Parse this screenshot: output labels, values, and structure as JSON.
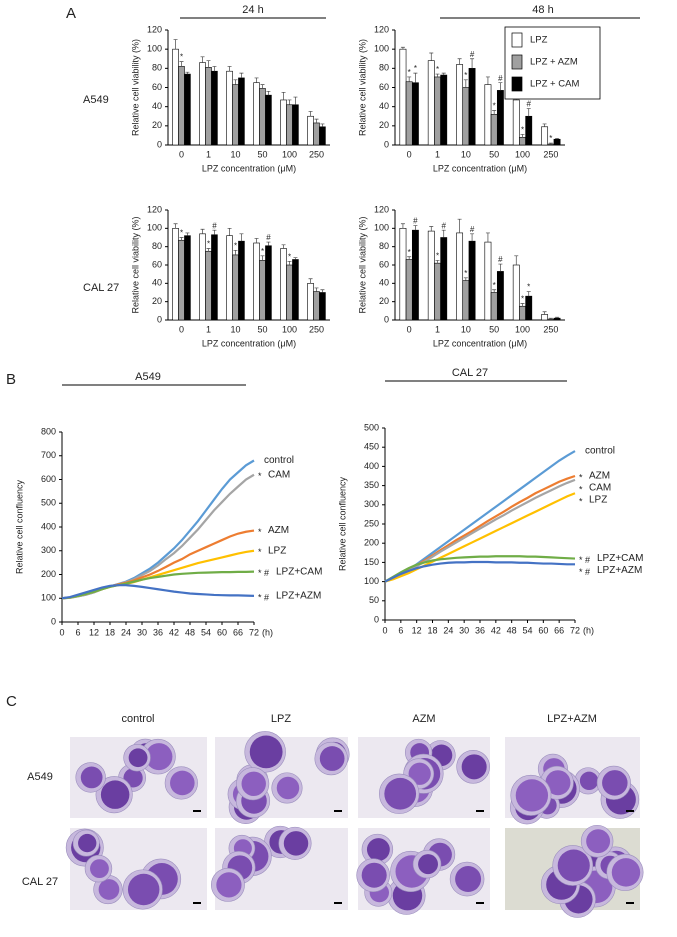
{
  "panel_a": {
    "label": "A",
    "columns": [
      "24 h",
      "48 h"
    ],
    "rows": [
      "A549",
      "CAL 27"
    ]
  },
  "panel_b": {
    "label": "B"
  },
  "panel_c": {
    "label": "C",
    "columns": [
      "control",
      "LPZ",
      "AZM",
      "LPZ+AZM"
    ],
    "rows": [
      "A549",
      "CAL 27"
    ]
  },
  "chart_data": [
    {
      "type": "bar",
      "x_label": "LPZ concentration (μM)",
      "y_label": "Relative cell viability (%)",
      "categories": [
        "0",
        "1",
        "10",
        "50",
        "100",
        "250"
      ],
      "ylim": [
        0,
        120
      ],
      "yticks": [
        0,
        20,
        40,
        60,
        80,
        100,
        120
      ],
      "legend": false,
      "series": [
        {
          "color": "#ffffff",
          "values": [
            100,
            86,
            77,
            65,
            47,
            30
          ],
          "errors": [
            10,
            6,
            5,
            5,
            8,
            5
          ],
          "marks": [
            null,
            null,
            null,
            null,
            null,
            null
          ]
        },
        {
          "color": "#a0a0a0",
          "values": [
            82,
            81,
            63,
            59,
            42,
            23
          ],
          "errors": [
            5,
            7,
            5,
            4,
            5,
            4
          ],
          "marks": [
            "*",
            null,
            null,
            null,
            null,
            null
          ]
        },
        {
          "color": "#000000",
          "values": [
            74,
            77,
            70,
            52,
            42,
            19
          ],
          "errors": [
            2,
            5,
            5,
            4,
            8,
            3
          ],
          "marks": [
            null,
            null,
            null,
            null,
            null,
            null
          ]
        }
      ]
    },
    {
      "type": "bar",
      "x_label": "LPZ concentration (μM)",
      "y_label": "Relative cell viability (%)",
      "categories": [
        "0",
        "1",
        "10",
        "50",
        "100",
        "250"
      ],
      "ylim": [
        0,
        120
      ],
      "yticks": [
        0,
        20,
        40,
        60,
        80,
        100,
        120
      ],
      "legend": true,
      "series": [
        {
          "name": "LPZ",
          "color": "#ffffff",
          "values": [
            100,
            88,
            84,
            63,
            47,
            19
          ],
          "errors": [
            2,
            8,
            6,
            8,
            2,
            3
          ],
          "marks": [
            null,
            null,
            null,
            null,
            null,
            null
          ]
        },
        {
          "name": "LPZ + AZM",
          "color": "#a0a0a0",
          "values": [
            66,
            71,
            60,
            32,
            8,
            1
          ],
          "errors": [
            5,
            3,
            8,
            4,
            3,
            1
          ],
          "marks": [
            "*",
            "*",
            "*",
            "*",
            "*",
            "*"
          ]
        },
        {
          "name": "LPZ + CAM",
          "color": "#000000",
          "values": [
            65,
            73,
            80,
            57,
            30,
            6
          ],
          "errors": [
            10,
            2,
            10,
            8,
            8,
            1
          ],
          "marks": [
            "*",
            null,
            "#",
            "#",
            "#",
            null
          ]
        }
      ]
    },
    {
      "type": "bar",
      "x_label": "LPZ concentration (μM)",
      "y_label": "Relative cell viability (%)",
      "categories": [
        "0",
        "1",
        "10",
        "50",
        "100",
        "250"
      ],
      "ylim": [
        0,
        120
      ],
      "yticks": [
        0,
        20,
        40,
        60,
        80,
        100,
        120
      ],
      "legend": false,
      "series": [
        {
          "color": "#ffffff",
          "values": [
            100,
            94,
            92,
            84,
            78,
            40
          ],
          "errors": [
            5,
            5,
            8,
            5,
            4,
            5
          ],
          "marks": [
            null,
            null,
            null,
            null,
            null,
            null
          ]
        },
        {
          "color": "#a0a0a0",
          "values": [
            87,
            75,
            71,
            65,
            60,
            31
          ],
          "errors": [
            3,
            3,
            5,
            5,
            4,
            4
          ],
          "marks": [
            "*",
            "*",
            "*",
            "*",
            "*",
            null
          ]
        },
        {
          "color": "#000000",
          "values": [
            92,
            93,
            86,
            81,
            66,
            30
          ],
          "errors": [
            3,
            5,
            8,
            4,
            2,
            3
          ],
          "marks": [
            null,
            "#",
            null,
            "#",
            null,
            null
          ]
        }
      ]
    },
    {
      "type": "bar",
      "x_label": "LPZ concentration (μM)",
      "y_label": "Relative cell viability (%)",
      "categories": [
        "0",
        "1",
        "10",
        "50",
        "100",
        "250"
      ],
      "ylim": [
        0,
        120
      ],
      "yticks": [
        0,
        20,
        40,
        60,
        80,
        100,
        120
      ],
      "legend": false,
      "series": [
        {
          "color": "#ffffff",
          "values": [
            100,
            97,
            95,
            85,
            60,
            6
          ],
          "errors": [
            5,
            5,
            15,
            10,
            10,
            3
          ],
          "marks": [
            null,
            null,
            null,
            null,
            null,
            null
          ]
        },
        {
          "color": "#a0a0a0",
          "values": [
            66,
            62,
            43,
            30,
            15,
            1
          ],
          "errors": [
            3,
            3,
            3,
            3,
            3,
            1
          ],
          "marks": [
            "*",
            "*",
            "*",
            "*",
            "*",
            null
          ]
        },
        {
          "color": "#000000",
          "values": [
            98,
            90,
            86,
            53,
            26,
            2
          ],
          "errors": [
            5,
            8,
            8,
            8,
            5,
            1
          ],
          "marks": [
            "#",
            "#",
            "#",
            "#",
            "*",
            null
          ]
        }
      ]
    },
    {
      "type": "line",
      "title": "A549",
      "x_label": "(h)",
      "y_label": "Relative cell confluency",
      "x": [
        0,
        3,
        6,
        9,
        12,
        15,
        18,
        21,
        24,
        27,
        30,
        33,
        36,
        39,
        42,
        45,
        48,
        51,
        54,
        57,
        60,
        63,
        66,
        69,
        72
      ],
      "xlim": [
        0,
        72
      ],
      "xticks": [
        0,
        6,
        12,
        18,
        24,
        30,
        36,
        42,
        48,
        54,
        60,
        66,
        72
      ],
      "ylim": [
        0,
        800
      ],
      "yticks": [
        0,
        100,
        200,
        300,
        400,
        500,
        600,
        700,
        800
      ],
      "series": [
        {
          "name": "control",
          "color": "#5b9bd5",
          "mark": null,
          "values": [
            100,
            102,
            108,
            115,
            125,
            138,
            150,
            160,
            170,
            185,
            205,
            225,
            250,
            280,
            310,
            345,
            385,
            425,
            470,
            515,
            560,
            600,
            630,
            660,
            680
          ]
        },
        {
          "name": "CAM",
          "color": "#a5a5a5",
          "mark": "*",
          "values": [
            100,
            102,
            108,
            115,
            125,
            138,
            148,
            158,
            168,
            180,
            198,
            215,
            238,
            265,
            290,
            320,
            355,
            390,
            430,
            470,
            505,
            540,
            570,
            600,
            620
          ]
        },
        {
          "name": "AZM",
          "color": "#ed7d31",
          "mark": "*",
          "values": [
            100,
            103,
            110,
            118,
            128,
            140,
            150,
            158,
            165,
            175,
            188,
            200,
            215,
            232,
            250,
            265,
            285,
            300,
            315,
            330,
            345,
            360,
            372,
            380,
            385
          ]
        },
        {
          "name": "LPZ",
          "color": "#ffc000",
          "mark": "*",
          "values": [
            100,
            103,
            110,
            118,
            127,
            138,
            148,
            155,
            160,
            168,
            178,
            188,
            198,
            208,
            218,
            228,
            238,
            248,
            256,
            264,
            272,
            280,
            288,
            295,
            300
          ]
        },
        {
          "name": "LPZ+CAM",
          "color": "#70ad47",
          "mark": "* #",
          "values": [
            100,
            103,
            110,
            118,
            127,
            138,
            148,
            155,
            162,
            170,
            178,
            185,
            190,
            195,
            200,
            203,
            205,
            207,
            208,
            209,
            210,
            210,
            211,
            211,
            212
          ]
        },
        {
          "name": "LPZ+AZM",
          "color": "#4472c4",
          "mark": "* #",
          "values": [
            100,
            105,
            115,
            125,
            135,
            145,
            152,
            155,
            155,
            152,
            148,
            143,
            138,
            133,
            128,
            124,
            120,
            118,
            116,
            114,
            113,
            112,
            112,
            111,
            110
          ]
        }
      ]
    },
    {
      "type": "line",
      "title": "CAL 27",
      "x_label": "(h)",
      "y_label": "Relative cell confluency",
      "x": [
        0,
        3,
        6,
        9,
        12,
        15,
        18,
        21,
        24,
        27,
        30,
        33,
        36,
        39,
        42,
        45,
        48,
        51,
        54,
        57,
        60,
        63,
        66,
        69,
        72
      ],
      "xlim": [
        0,
        72
      ],
      "xticks": [
        0,
        6,
        12,
        18,
        24,
        30,
        36,
        42,
        48,
        54,
        60,
        66,
        72
      ],
      "ylim": [
        0,
        500
      ],
      "yticks": [
        0,
        50,
        100,
        150,
        200,
        250,
        300,
        350,
        400,
        450,
        500
      ],
      "series": [
        {
          "name": "control",
          "color": "#5b9bd5",
          "mark": null,
          "values": [
            100,
            110,
            120,
            132,
            145,
            160,
            175,
            190,
            205,
            220,
            235,
            250,
            265,
            280,
            295,
            310,
            325,
            340,
            355,
            370,
            385,
            400,
            415,
            428,
            440
          ]
        },
        {
          "name": "AZM",
          "color": "#ed7d31",
          "mark": "*",
          "values": [
            100,
            110,
            120,
            130,
            142,
            155,
            168,
            182,
            195,
            208,
            220,
            232,
            245,
            258,
            270,
            282,
            295,
            307,
            318,
            330,
            340,
            350,
            360,
            368,
            375
          ]
        },
        {
          "name": "CAM",
          "color": "#a5a5a5",
          "mark": "*",
          "values": [
            100,
            109,
            118,
            128,
            140,
            152,
            165,
            178,
            190,
            202,
            214,
            226,
            238,
            250,
            262,
            273,
            285,
            296,
            307,
            318,
            328,
            338,
            348,
            357,
            365
          ]
        },
        {
          "name": "LPZ",
          "color": "#ffc000",
          "mark": "*",
          "values": [
            100,
            106,
            114,
            122,
            132,
            142,
            152,
            162,
            172,
            182,
            192,
            202,
            212,
            222,
            232,
            242,
            252,
            262,
            272,
            282,
            292,
            302,
            312,
            322,
            330
          ]
        },
        {
          "name": "LPZ+CAM",
          "color": "#70ad47",
          "mark": "* #",
          "values": [
            100,
            112,
            124,
            135,
            144,
            150,
            155,
            158,
            160,
            162,
            163,
            164,
            165,
            165,
            166,
            166,
            166,
            166,
            165,
            165,
            164,
            163,
            162,
            161,
            160
          ]
        },
        {
          "name": "LPZ+AZM",
          "color": "#4472c4",
          "mark": "* #",
          "values": [
            100,
            110,
            120,
            128,
            135,
            140,
            144,
            147,
            149,
            150,
            150,
            151,
            151,
            151,
            150,
            150,
            150,
            149,
            149,
            148,
            147,
            147,
            146,
            145,
            145
          ]
        }
      ]
    }
  ]
}
